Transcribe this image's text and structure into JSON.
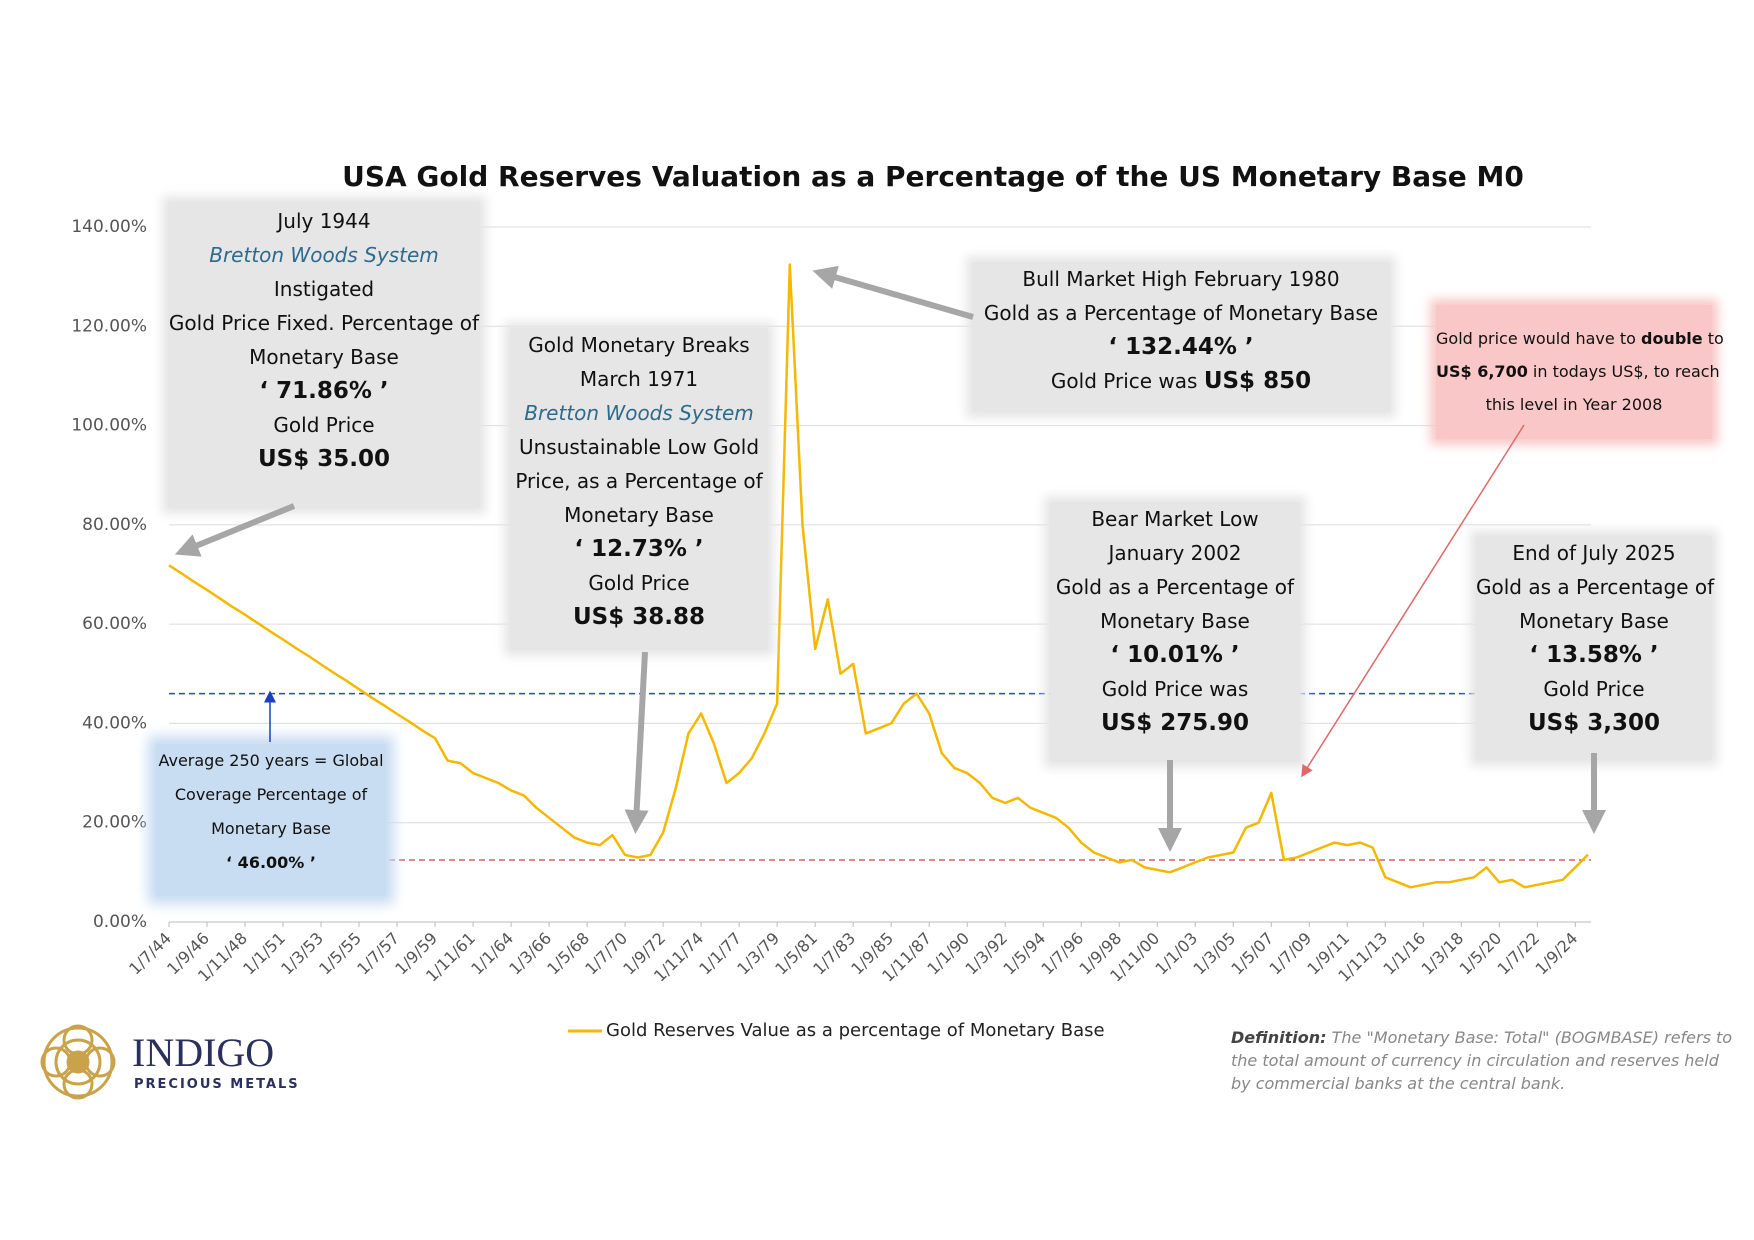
{
  "chart_data": {
    "type": "line",
    "title": "USA Gold Reserves Valuation as a Percentage of the US Monetary Base M0",
    "categories": [
      "1/7/44",
      null,
      null,
      "1/9/46",
      null,
      null,
      "1/11/48",
      null,
      null,
      "1/1/51",
      null,
      null,
      "1/3/53",
      null,
      null,
      "1/5/55",
      null,
      null,
      "1/7/57",
      null,
      null,
      "1/9/59",
      null,
      null,
      "1/11/61",
      null,
      null,
      "1/1/64",
      null,
      null,
      "1/3/66",
      null,
      null,
      "1/5/68",
      null,
      null,
      "1/7/70",
      null,
      null,
      "1/9/72",
      null,
      null,
      "1/11/74",
      null,
      null,
      "1/1/77",
      null,
      null,
      "1/3/79",
      null,
      null,
      "1/5/81",
      null,
      null,
      "1/7/83",
      null,
      null,
      "1/9/85",
      null,
      null,
      "1/11/87",
      null,
      null,
      "1/1/90",
      null,
      null,
      "1/3/92",
      null,
      null,
      "1/5/94",
      null,
      null,
      "1/7/96",
      null,
      null,
      "1/9/98",
      null,
      null,
      "1/11/00",
      null,
      null,
      "1/1/03",
      null,
      null,
      "1/3/05",
      null,
      null,
      "1/5/07",
      null,
      null,
      "1/7/09",
      null,
      null,
      "1/9/11",
      null,
      null,
      "1/11/13",
      null,
      null,
      "1/1/16",
      null,
      null,
      "1/3/18",
      null,
      null,
      "1/5/20",
      null,
      null,
      "1/7/22",
      null,
      null,
      "1/9/24",
      null
    ],
    "series": [
      {
        "name": "Gold Reserves Value as a percentage of Monetary Base",
        "color": "#f5b800",
        "values": [
          71.86,
          70.2,
          68.5,
          66.9,
          65.2,
          63.5,
          61.9,
          60.2,
          58.5,
          56.9,
          55.2,
          53.6,
          51.9,
          50.2,
          48.6,
          46.9,
          45.2,
          43.6,
          41.9,
          40.3,
          38.6,
          37.0,
          32.5,
          32.0,
          30.0,
          29.0,
          28.0,
          26.5,
          25.5,
          23.0,
          21.0,
          19.0,
          17.0,
          16.0,
          15.5,
          17.5,
          13.5,
          13.0,
          13.5,
          18.0,
          27.0,
          38.0,
          42.0,
          36.0,
          28.0,
          30.0,
          33.0,
          38.0,
          44.0,
          132.44,
          80.0,
          55.0,
          65.0,
          50.0,
          52.0,
          38.0,
          39.0,
          40.0,
          44.0,
          46.0,
          42.0,
          34.0,
          31.0,
          30.0,
          28.0,
          25.0,
          24.0,
          25.0,
          23.0,
          22.0,
          21.0,
          19.0,
          16.0,
          14.0,
          13.0,
          12.0,
          12.5,
          11.0,
          10.5,
          10.01,
          11.0,
          12.0,
          13.0,
          13.5,
          14.0,
          19.0,
          20.0,
          26.0,
          12.5,
          13.0,
          14.0,
          15.0,
          16.0,
          15.5,
          16.0,
          15.0,
          9.0,
          8.0,
          7.0,
          7.5,
          8.0,
          8.0,
          8.5,
          9.0,
          11.0,
          8.0,
          8.5,
          7.0,
          7.5,
          8.0,
          8.5,
          11.0,
          13.58
        ]
      }
    ],
    "ylim": [
      0,
      140
    ],
    "yticks": [
      {
        "value": 0,
        "label": "0.00%"
      },
      {
        "value": 20,
        "label": "20.00%"
      },
      {
        "value": 40,
        "label": "40.00%"
      },
      {
        "value": 60,
        "label": "60.00%"
      },
      {
        "value": 80,
        "label": "80.00%"
      },
      {
        "value": 100,
        "label": "100.00%"
      },
      {
        "value": 120,
        "label": "120.00%"
      },
      {
        "value": 140,
        "label": "140.00%"
      }
    ],
    "grid": true,
    "legend": "bottom",
    "reference_lines": [
      {
        "value": 46,
        "color": "#2a4db0"
      },
      {
        "value": 12.5,
        "color": "#d06464"
      }
    ],
    "annotations": [
      {
        "lines": [
          "July 1944",
          "Bretton Woods System",
          "Instigated",
          "Gold Price Fixed. Percentage of",
          "Monetary Base",
          "‘ 71.86% ’",
          "Gold Price",
          "US$ 35.00"
        ]
      },
      {
        "lines": [
          "Gold Monetary Breaks",
          "March 1971",
          "Bretton Woods System",
          "Unsustainable Low Gold",
          "Price, as a Percentage of",
          "Monetary Base",
          "‘ 12.73% ’",
          "Gold Price",
          "US$ 38.88"
        ]
      },
      {
        "lines": [
          "Bull Market High February 1980",
          "Gold as a Percentage of Monetary Base",
          "‘ 132.44% ’",
          "Gold Price was ",
          "US$ 850"
        ]
      },
      {
        "lines": [
          "Gold price would have to ",
          "double",
          " to",
          "US$ 6,700",
          " in todays US$, to reach",
          "this level in Year 2008"
        ]
      },
      {
        "lines": [
          "Bear Market Low",
          "January 2002",
          "Gold as a Percentage of",
          "Monetary Base",
          "‘ 10.01% ’",
          "Gold Price was",
          "US$ 275.90"
        ]
      },
      {
        "lines": [
          "End of July 2025",
          "Gold as a Percentage of",
          "Monetary Base",
          "‘ 13.58% ’",
          "Gold Price",
          "US$ 3,300"
        ]
      },
      {
        "lines": [
          "Average 250 years = Global",
          "Coverage Percentage of",
          "Monetary Base",
          "‘ 46.00% ’"
        ]
      }
    ]
  },
  "logo": {
    "name": "INDIGO",
    "tagline": "PRECIOUS METALS"
  },
  "definition": {
    "label": "Definition:",
    "text": " The \"Monetary Base: Total\" (BOGMBASE) refers to the total amount of currency in circulation and reserves held by commercial banks at the central bank."
  }
}
